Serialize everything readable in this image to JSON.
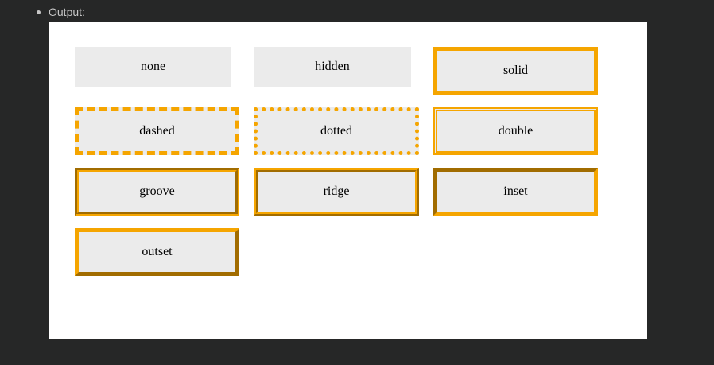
{
  "header": {
    "output_label": "Output:"
  },
  "colors": {
    "border_accent": "#f5a500",
    "box_background": "#ebebeb",
    "page_background": "#262727",
    "panel_background": "#ffffff"
  },
  "boxes": [
    {
      "label": "none"
    },
    {
      "label": "hidden"
    },
    {
      "label": "solid"
    },
    {
      "label": "dashed"
    },
    {
      "label": "dotted"
    },
    {
      "label": "double"
    },
    {
      "label": "groove"
    },
    {
      "label": "ridge"
    },
    {
      "label": "inset"
    },
    {
      "label": "outset"
    }
  ]
}
